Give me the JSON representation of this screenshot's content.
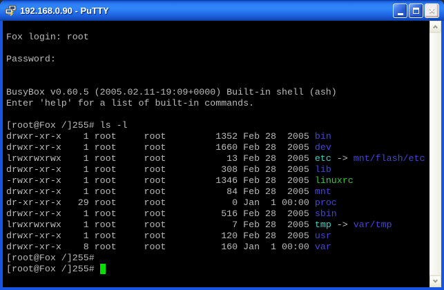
{
  "window": {
    "title": "192.168.0.90 - PuTTY"
  },
  "icons": {
    "titlebar_icon": "putty-two-computers",
    "minimize": "underscore",
    "maximize": "square-outline",
    "close_glyph": "×",
    "scroll_up": "chevron-up",
    "scroll_down": "chevron-down"
  },
  "colors": {
    "frame": "#1855E0",
    "terminal_bg": "#000000",
    "fg": "#BBBBBB",
    "dir": "#4545D8",
    "link": "#45CFC7",
    "exec": "#3CC53C",
    "cursor": "#00E000"
  },
  "terminal": {
    "lines": [
      [],
      [
        [
          "Fox login: root",
          "fg"
        ]
      ],
      [],
      [
        [
          "Password:",
          "fg"
        ]
      ],
      [],
      [],
      [
        [
          "BusyBox v0.60.5 (2005.02.11-19:09+0000) Built-in shell (ash)",
          "fg"
        ]
      ],
      [
        [
          "Enter 'help' for a list of built-in commands.",
          "fg"
        ]
      ],
      [],
      [
        [
          "[root@Fox /]255# ls -l",
          "fg"
        ]
      ],
      [
        [
          "drwxr-xr-x    1 root     root         1352 Feb 28  2005 ",
          "fg"
        ],
        [
          "bin",
          "dir"
        ]
      ],
      [
        [
          "drwxr-xr-x    1 root     root         1660 Feb 28  2005 ",
          "fg"
        ],
        [
          "dev",
          "dir"
        ]
      ],
      [
        [
          "lrwxrwxrwx    1 root     root           13 Feb 28  2005 ",
          "fg"
        ],
        [
          "etc",
          "link"
        ],
        [
          " -> ",
          "fg"
        ],
        [
          "mnt/flash/etc",
          "dir"
        ]
      ],
      [
        [
          "drwxr-xr-x    1 root     root          308 Feb 28  2005 ",
          "fg"
        ],
        [
          "lib",
          "dir"
        ]
      ],
      [
        [
          "-rwxr-xr-x    1 root     root         1346 Feb 28  2005 ",
          "fg"
        ],
        [
          "linuxrc",
          "exec"
        ]
      ],
      [
        [
          "drwxr-xr-x    1 root     root           84 Feb 28  2005 ",
          "fg"
        ],
        [
          "mnt",
          "dir"
        ]
      ],
      [
        [
          "dr-xr-xr-x   29 root     root            0 Jan  1 00:00 ",
          "fg"
        ],
        [
          "proc",
          "dir"
        ]
      ],
      [
        [
          "drwxr-xr-x    1 root     root          516 Feb 28  2005 ",
          "fg"
        ],
        [
          "sbin",
          "dir"
        ]
      ],
      [
        [
          "lrwxrwxrwx    1 root     root            7 Feb 28  2005 ",
          "fg"
        ],
        [
          "tmp",
          "link"
        ],
        [
          " -> ",
          "fg"
        ],
        [
          "var/tmp",
          "dir"
        ]
      ],
      [
        [
          "drwxr-xr-x    1 root     root          120 Feb 28  2005 ",
          "fg"
        ],
        [
          "usr",
          "dir"
        ]
      ],
      [
        [
          "drwxr-xr-x    8 root     root          160 Jan  1 00:00 ",
          "fg"
        ],
        [
          "var",
          "dir"
        ]
      ],
      [
        [
          "[root@Fox /]255#",
          "fg"
        ]
      ],
      [
        [
          "[root@Fox /]255# ",
          "fg"
        ],
        [
          " ",
          "cursor"
        ]
      ],
      []
    ]
  }
}
